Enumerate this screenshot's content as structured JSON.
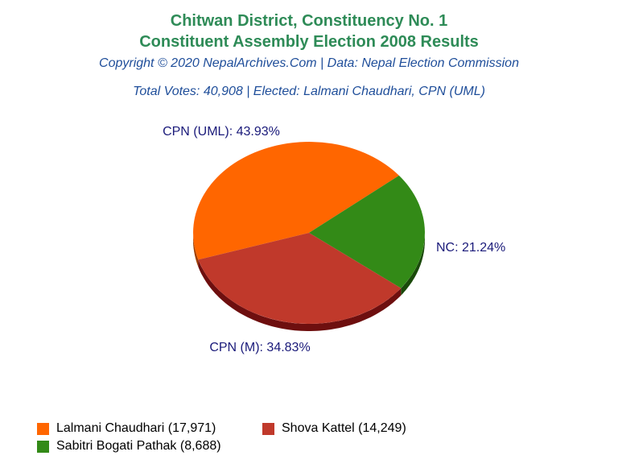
{
  "header": {
    "title_line1": "Chitwan District, Constituency No. 1",
    "title_line2": "Constituent Assembly Election 2008 Results",
    "copyright": "Copyright © 2020 NepalArchives.Com | Data: Nepal Election Commission",
    "summary": "Total Votes: 40,908 | Elected: Lalmani Chaudhari, CPN (UML)"
  },
  "chart_data": {
    "type": "pie",
    "title": "Chitwan District, Constituency No. 1 Constituent Assembly Election 2008 Results",
    "slices": [
      {
        "party": "CPN (UML)",
        "candidate": "Lalmani Chaudhari",
        "votes": 17971,
        "percent": 43.93,
        "label": "CPN (UML): 43.93%",
        "legend": "Lalmani Chaudhari (17,971)",
        "color": "#ff6600",
        "side": "#a03e00"
      },
      {
        "party": "NC",
        "candidate": "Sabitri Bogati Pathak",
        "votes": 8688,
        "percent": 21.24,
        "label": "NC: 21.24%",
        "legend": "Sabitri Bogati Pathak (8,688)",
        "color": "#338a17",
        "side": "#1a4a0a"
      },
      {
        "party": "CPN (M)",
        "candidate": "Shova Kattel",
        "votes": 14249,
        "percent": 34.83,
        "label": "CPN (M): 34.83%",
        "legend": "Shova Kattel (14,249)",
        "color": "#c0392b",
        "side": "#6e0f0f"
      }
    ],
    "legend_position": "bottom"
  }
}
